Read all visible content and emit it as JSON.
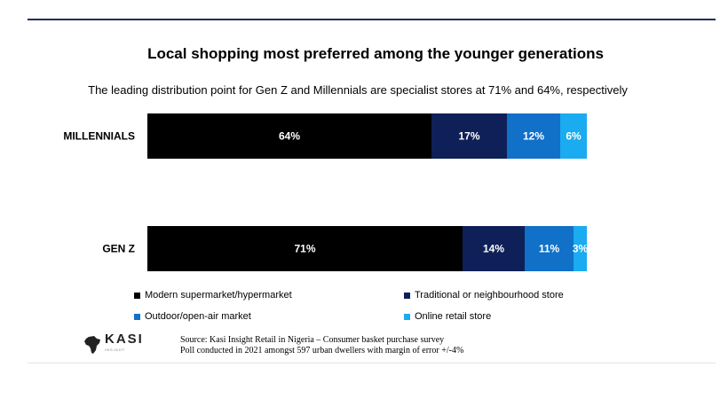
{
  "header": {
    "title": "Local shopping most preferred among the younger generations",
    "subtitle": "The leading distribution point for Gen Z and Millennials are specialist stores at 71% and 64%, respectively"
  },
  "chart_data": {
    "type": "bar",
    "orientation": "horizontal",
    "stacked": true,
    "categories": [
      "MILLENNIALS",
      "GEN Z"
    ],
    "series": [
      {
        "name": "Modern supermarket/hypermarket",
        "color": "#000000",
        "values": [
          64,
          71
        ],
        "labels": [
          "64%",
          "71%"
        ]
      },
      {
        "name": "Traditional or neighbourhood store",
        "color": "#0e2057",
        "values": [
          17,
          14
        ],
        "labels": [
          "17%",
          "14%"
        ]
      },
      {
        "name": "Outdoor/open-air market",
        "color": "#1170c8",
        "values": [
          12,
          11
        ],
        "labels": [
          "12%",
          "11%"
        ]
      },
      {
        "name": "Online retail store",
        "color": "#1aabf0",
        "values": [
          6,
          3
        ],
        "labels": [
          "6%",
          "3%"
        ]
      }
    ],
    "legend_position": "bottom",
    "grid": false,
    "axes_visible": false
  },
  "legend": {
    "items": [
      {
        "label": "Modern supermarket/hypermarket",
        "color": "#000000"
      },
      {
        "label": "Traditional or neighbourhood store",
        "color": "#0e2057"
      },
      {
        "label": "Outdoor/open-air market",
        "color": "#1170c8"
      },
      {
        "label": "Online retail store",
        "color": "#1aabf0"
      }
    ]
  },
  "source": {
    "line1": "Source: Kasi Insight Retail in Nigeria – Consumer basket purchase survey",
    "line2": "Poll conducted in 2021 amongst 597 urban dwellers with margin of error +/-4%",
    "logo_text": "KASI",
    "logo_subtext": "INSIGHT"
  }
}
